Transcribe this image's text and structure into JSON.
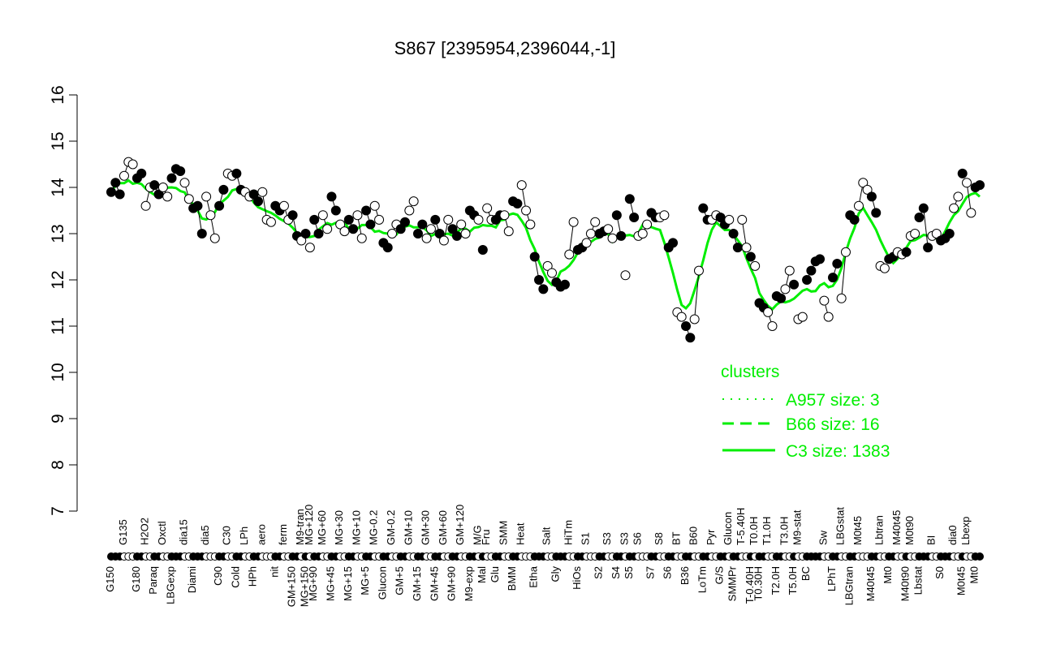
{
  "chart_data": {
    "type": "line",
    "title": "S867 [2395954,2396044,-1]",
    "xlabel": "",
    "ylabel": "",
    "ylim": [
      7,
      16
    ],
    "yticks": [
      7,
      8,
      9,
      10,
      11,
      12,
      13,
      14,
      15,
      16
    ],
    "grid": false,
    "groups": [
      {
        "label": "G150",
        "values": [
          13.9,
          14.1,
          13.85
        ]
      },
      {
        "label": "G135",
        "values": [
          14.25,
          14.55,
          14.5
        ]
      },
      {
        "label": "G180",
        "values": [
          14.2,
          14.3
        ]
      },
      {
        "label": "H2O2",
        "values": [
          13.6,
          14.0
        ]
      },
      {
        "label": "Paraq",
        "values": [
          14.05,
          13.85
        ]
      },
      {
        "label": "Oxctl",
        "values": [
          14.0,
          13.8
        ]
      },
      {
        "label": "LBGexp",
        "values": [
          14.2,
          14.4,
          14.35
        ]
      },
      {
        "label": "dia15",
        "values": [
          14.1,
          13.75
        ]
      },
      {
        "label": "Diami",
        "values": [
          13.55,
          13.6,
          13.0
        ]
      },
      {
        "label": "dia5",
        "values": [
          13.8,
          13.4,
          12.9
        ]
      },
      {
        "label": "C90",
        "values": [
          13.6,
          13.95
        ]
      },
      {
        "label": "C30",
        "values": [
          14.3,
          14.25
        ]
      },
      {
        "label": "Cold",
        "values": [
          14.3,
          13.95
        ]
      },
      {
        "label": "LPh",
        "values": [
          13.9,
          13.8
        ]
      },
      {
        "label": "HPh",
        "values": [
          13.85,
          13.7
        ]
      },
      {
        "label": "aero",
        "values": [
          13.9,
          13.3,
          13.25
        ]
      },
      {
        "label": "nit",
        "values": [
          13.6,
          13.5
        ]
      },
      {
        "label": "ferm",
        "values": [
          13.6,
          13.3
        ]
      },
      {
        "label": "GM+150",
        "values": [
          13.4,
          12.95
        ]
      },
      {
        "label": "M9-tran",
        "values": [
          12.85
        ]
      },
      {
        "label": "MG+150",
        "values": [
          13.0
        ]
      },
      {
        "label": "MG+120",
        "values": [
          12.7
        ]
      },
      {
        "label": "MG+90",
        "values": [
          13.3,
          13.0
        ]
      },
      {
        "label": "MG+60",
        "values": [
          13.4,
          13.1
        ]
      },
      {
        "label": "MG+45",
        "values": [
          13.8,
          13.5
        ]
      },
      {
        "label": "MG+30",
        "values": [
          13.2,
          13.05
        ]
      },
      {
        "label": "MG+15",
        "values": [
          13.3,
          13.1
        ]
      },
      {
        "label": "MG+10",
        "values": [
          13.4,
          12.9
        ]
      },
      {
        "label": "MG+5",
        "values": [
          13.5,
          13.2
        ]
      },
      {
        "label": "MG-0.2",
        "values": [
          13.6,
          13.3
        ]
      },
      {
        "label": "Glucon",
        "values": [
          12.8,
          12.7
        ]
      },
      {
        "label": "GM-0.2",
        "values": [
          13.0,
          13.2
        ]
      },
      {
        "label": "GM+5",
        "values": [
          13.1,
          13.25
        ]
      },
      {
        "label": "GM+10",
        "values": [
          13.5,
          13.7
        ]
      },
      {
        "label": "GM+15",
        "values": [
          13.0,
          13.2
        ]
      },
      {
        "label": "GM+30",
        "values": [
          12.9,
          13.1
        ]
      },
      {
        "label": "GM+45",
        "values": [
          13.3,
          13.0
        ]
      },
      {
        "label": "GM+60",
        "values": [
          12.85,
          13.3
        ]
      },
      {
        "label": "GM+90",
        "values": [
          13.1,
          12.95
        ]
      },
      {
        "label": "GM+120",
        "values": [
          13.2,
          13.0
        ]
      },
      {
        "label": "M9-exp",
        "values": [
          13.5,
          13.4
        ]
      },
      {
        "label": "M/G",
        "values": [
          13.3
        ]
      },
      {
        "label": "Mal",
        "values": [
          12.65
        ]
      },
      {
        "label": "Fru",
        "values": [
          13.55,
          13.3
        ]
      },
      {
        "label": "Glu",
        "values": [
          13.3,
          13.4
        ]
      },
      {
        "label": "SMM",
        "values": [
          13.4,
          13.05
        ]
      },
      {
        "label": "BMM",
        "values": [
          13.7,
          13.65
        ]
      },
      {
        "label": "Heat",
        "values": [
          14.05,
          13.5,
          13.2
        ]
      },
      {
        "label": "Etha",
        "values": [
          12.5,
          12.0,
          11.8
        ]
      },
      {
        "label": "Salt",
        "values": [
          12.3,
          12.15
        ]
      },
      {
        "label": "Gly",
        "values": [
          11.95,
          11.85,
          11.9
        ]
      },
      {
        "label": "HiTm",
        "values": [
          12.55,
          13.25
        ]
      },
      {
        "label": "HiOs",
        "values": [
          12.65,
          12.7
        ]
      },
      {
        "label": "S1",
        "values": [
          12.8,
          13.0,
          13.25
        ]
      },
      {
        "label": "S2",
        "values": [
          13.0,
          13.05
        ]
      },
      {
        "label": "S3",
        "values": [
          13.1,
          12.9
        ]
      },
      {
        "label": "S4",
        "values": [
          13.4,
          12.95
        ]
      },
      {
        "label": "S3",
        "values": [
          12.1
        ]
      },
      {
        "label": "S5",
        "values": [
          13.75,
          13.35
        ]
      },
      {
        "label": "S6",
        "values": [
          12.95,
          13.0,
          13.2
        ]
      },
      {
        "label": "S7",
        "values": [
          13.45,
          13.35
        ]
      },
      {
        "label": "S8",
        "values": [
          13.35,
          13.4
        ]
      },
      {
        "label": "S6",
        "values": [
          12.7,
          12.8
        ]
      },
      {
        "label": "BT",
        "values": [
          11.3,
          11.2
        ]
      },
      {
        "label": "B36",
        "values": [
          11.0,
          10.75
        ]
      },
      {
        "label": "B60",
        "values": [
          11.15,
          12.2
        ]
      },
      {
        "label": "LoTm",
        "values": [
          13.55,
          13.3
        ]
      },
      {
        "label": "Pyr",
        "values": [
          13.3,
          13.4
        ]
      },
      {
        "label": "G/S",
        "values": [
          13.35,
          13.2
        ]
      },
      {
        "label": "Glucon",
        "values": [
          13.3
        ]
      },
      {
        "label": "SMMPr",
        "values": [
          13.0,
          12.7
        ]
      },
      {
        "label": "T-5.40H",
        "values": [
          13.3,
          12.7
        ]
      },
      {
        "label": "T-0.40H",
        "values": [
          12.5
        ]
      },
      {
        "label": "T0.0H",
        "values": [
          12.3
        ]
      },
      {
        "label": "T0.30H",
        "values": [
          11.5,
          11.4
        ]
      },
      {
        "label": "T1.0H",
        "values": [
          11.3,
          11.0
        ]
      },
      {
        "label": "T2.0H",
        "values": [
          11.65,
          11.6
        ]
      },
      {
        "label": "T3.0H",
        "values": [
          11.8,
          12.2
        ]
      },
      {
        "label": "T5.0H",
        "values": [
          11.9
        ]
      },
      {
        "label": "M9-stat",
        "values": [
          11.15,
          11.2
        ]
      },
      {
        "label": "BC",
        "values": [
          12.0,
          12.2,
          12.4,
          12.45
        ]
      },
      {
        "label": "Sw",
        "values": [
          11.55,
          11.2
        ]
      },
      {
        "label": "LPhT",
        "values": [
          12.05,
          12.35
        ]
      },
      {
        "label": "LBGstat",
        "values": [
          11.6,
          12.6
        ]
      },
      {
        "label": "LBGtran",
        "values": [
          13.4,
          13.3
        ]
      },
      {
        "label": "M0t45",
        "values": [
          13.6,
          14.1,
          13.95
        ]
      },
      {
        "label": "M40t45",
        "values": [
          13.8,
          13.45
        ]
      },
      {
        "label": "Lbtran",
        "values": [
          12.3,
          12.25
        ]
      },
      {
        "label": "Mt0",
        "values": [
          12.45,
          12.5
        ]
      },
      {
        "label": "M40t45",
        "values": [
          12.6,
          12.55
        ]
      },
      {
        "label": "M40t90",
        "values": [
          12.6
        ]
      },
      {
        "label": "M0t90",
        "values": [
          12.95,
          13.0
        ]
      },
      {
        "label": "Lbstat",
        "values": [
          13.35,
          13.55,
          12.7
        ]
      },
      {
        "label": "BI",
        "values": [
          12.95,
          13.0
        ]
      },
      {
        "label": "S0",
        "values": [
          12.85,
          12.9,
          13.0
        ]
      },
      {
        "label": "dia0",
        "values": [
          13.55,
          13.8
        ]
      },
      {
        "label": "M0t45",
        "values": [
          14.3
        ]
      },
      {
        "label": "Lbexp",
        "values": [
          14.1,
          13.45
        ]
      },
      {
        "label": "Mt0",
        "values": [
          14.0,
          14.05
        ]
      }
    ],
    "legend": {
      "title": "clusters",
      "position": "right",
      "entries": [
        {
          "name": "A957 size: 3",
          "style": "dotted"
        },
        {
          "name": "B66 size: 16",
          "style": "dashed"
        },
        {
          "name": "C3 size: 1383",
          "style": "solid"
        }
      ]
    },
    "colors": {
      "cluster": "#00ee00",
      "points": "#000000"
    }
  }
}
